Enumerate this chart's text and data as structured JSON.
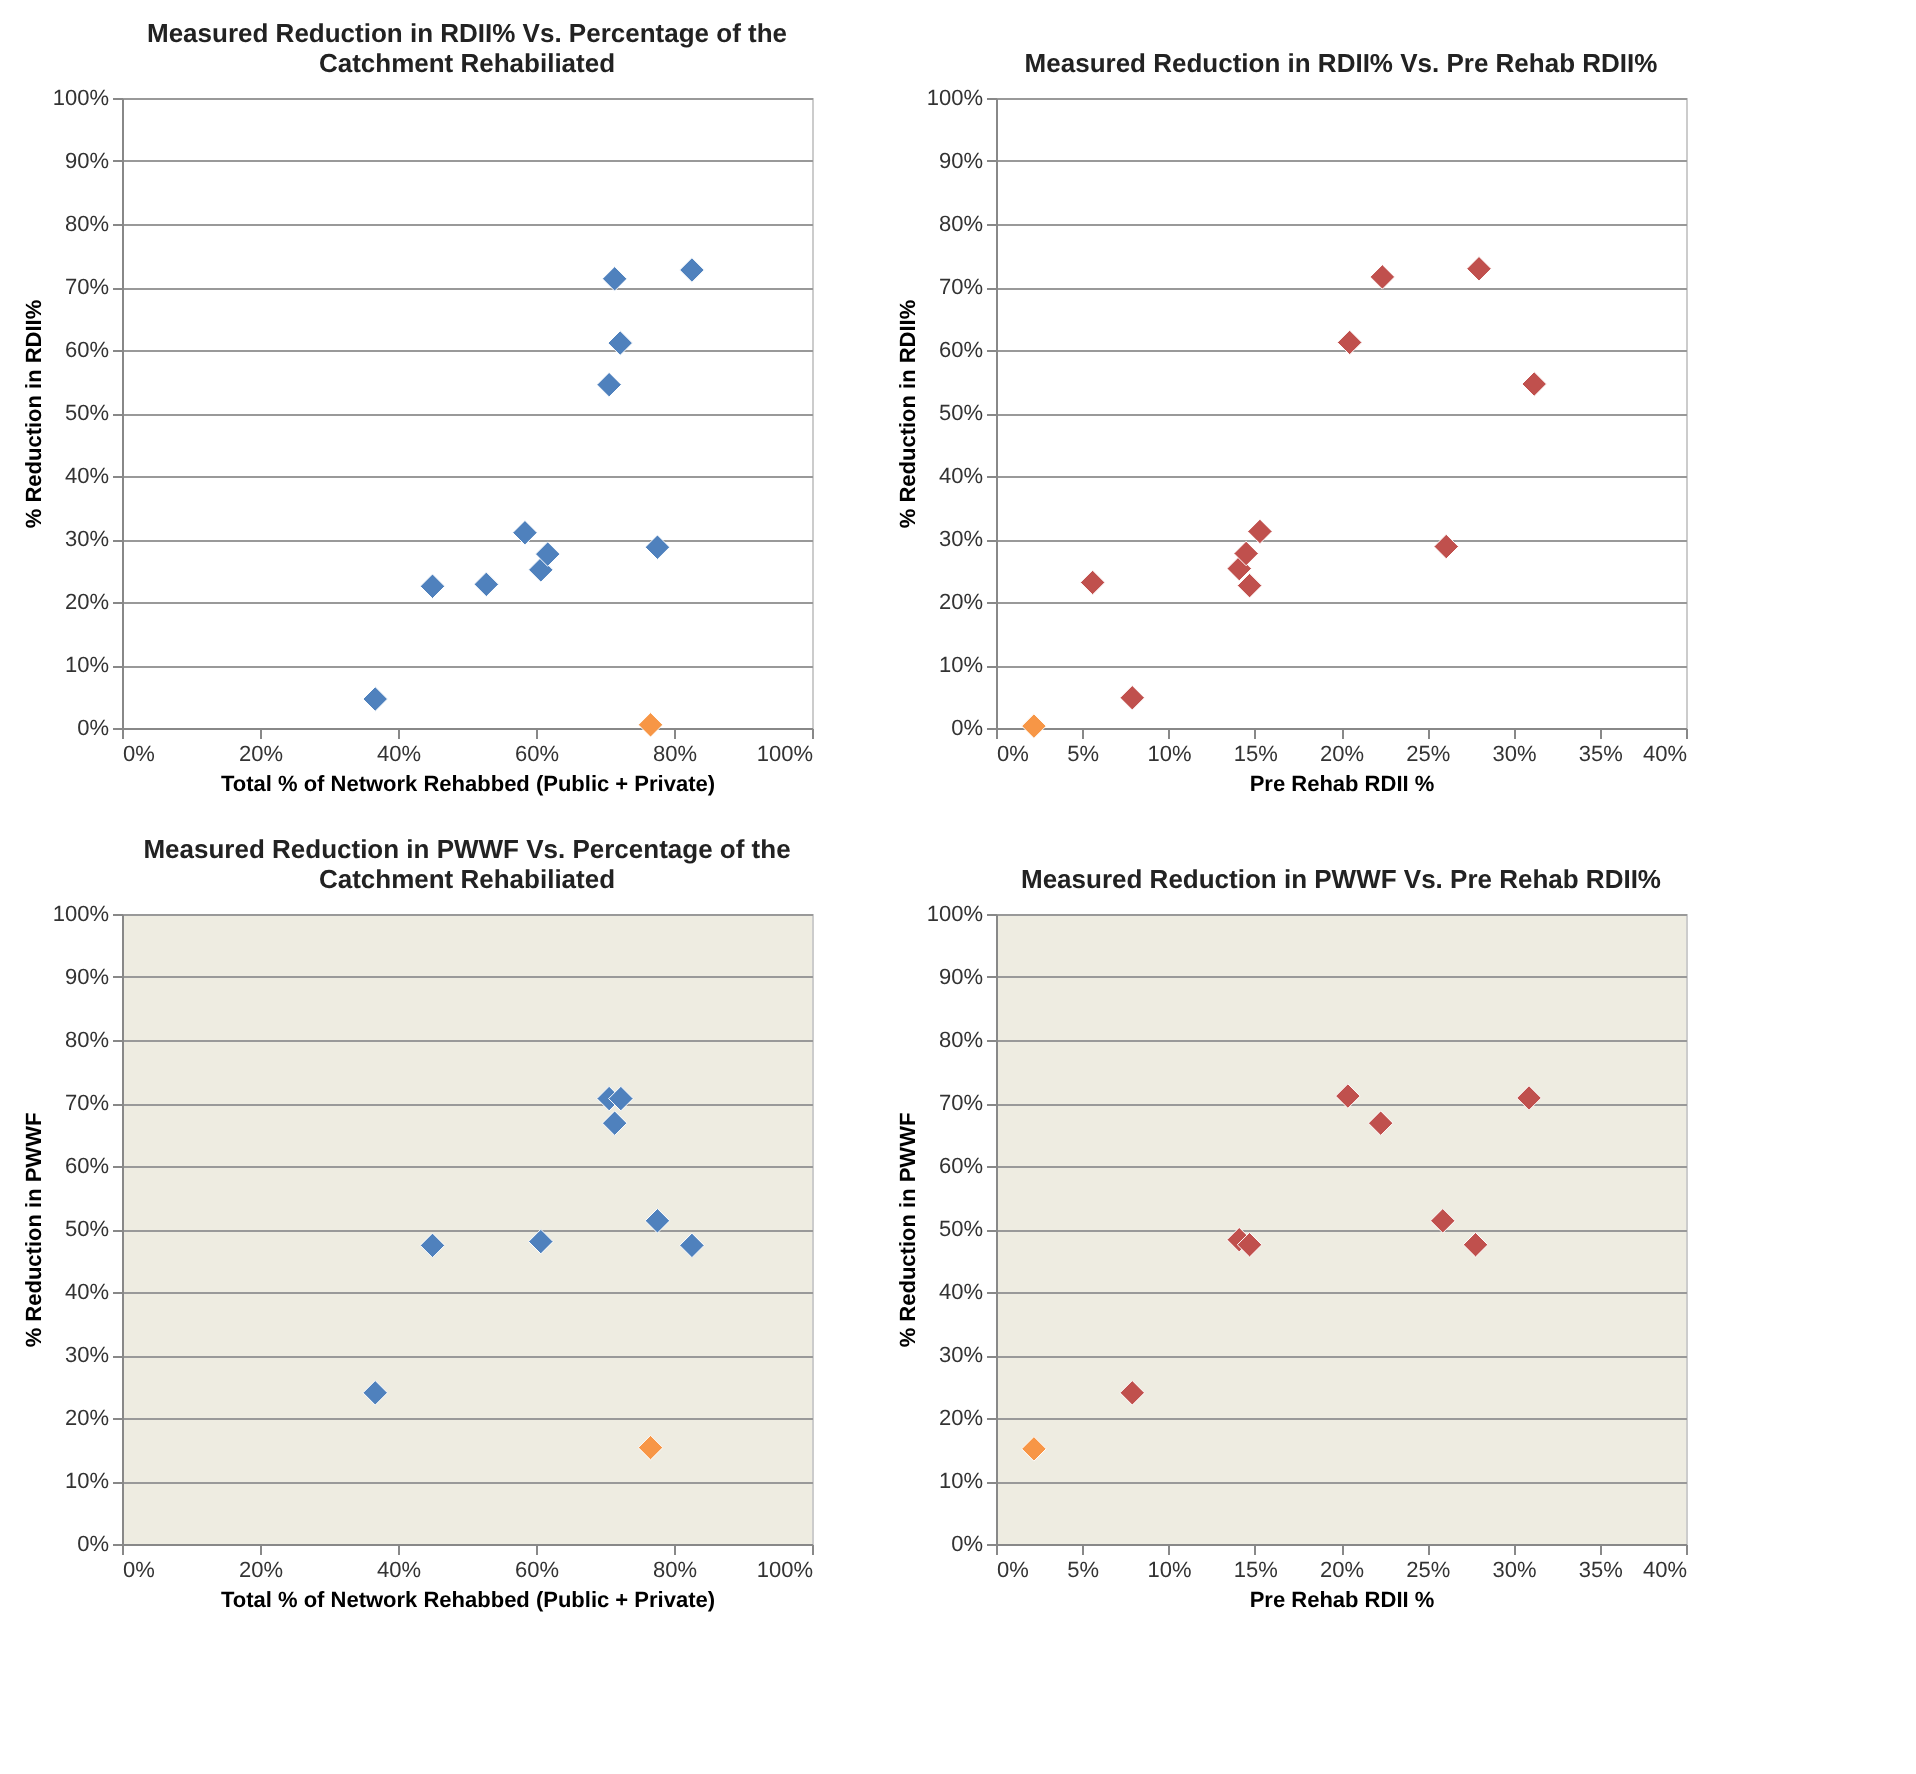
{
  "chart_data": [
    {
      "type": "scatter",
      "title": "Measured Reduction in RDII% Vs. Percentage of the Catchment Rehabiliated",
      "xlabel": "Total %  of Network Rehabbed (Public + Private)",
      "ylabel": "% Reduction in RDII%",
      "marker": "diamond",
      "grid": "y",
      "xlim": [
        0,
        100
      ],
      "ylim": [
        0,
        100
      ],
      "xticks": [
        {
          "value": 0,
          "label": "0%"
        },
        {
          "value": 20,
          "label": "20%"
        },
        {
          "value": 40,
          "label": "40%"
        },
        {
          "value": 60,
          "label": "60%"
        },
        {
          "value": 80,
          "label": "80%"
        },
        {
          "value": 100,
          "label": "100%"
        }
      ],
      "yticks": [
        {
          "value": 0,
          "label": "0%"
        },
        {
          "value": 10,
          "label": "10%"
        },
        {
          "value": 20,
          "label": "20%"
        },
        {
          "value": 30,
          "label": "30%"
        },
        {
          "value": 40,
          "label": "40%"
        },
        {
          "value": 50,
          "label": "50%"
        },
        {
          "value": 60,
          "label": "60%"
        },
        {
          "value": 70,
          "label": "70%"
        },
        {
          "value": 80,
          "label": "80%"
        },
        {
          "value": 90,
          "label": "90%"
        },
        {
          "value": 100,
          "label": "100%"
        }
      ],
      "series": [
        {
          "color": "#4f81bd",
          "x": [
            36.7,
            45.0,
            52.8,
            58.4,
            60.7,
            61.7,
            70.6,
            71.4,
            72.2,
            77.6,
            82.6
          ],
          "values": [
            4.6,
            22.5,
            22.8,
            31.0,
            25.1,
            27.6,
            54.5,
            71.3,
            61.1,
            28.7,
            72.7
          ]
        },
        {
          "color": "#f79646",
          "x": [
            76.6
          ],
          "values": [
            0.5
          ]
        }
      ]
    },
    {
      "type": "scatter",
      "title": "Measured Reduction in RDII% Vs. Pre Rehab RDII%",
      "xlabel": "Pre Rehab RDII %",
      "ylabel": "% Reduction in RDII%",
      "marker": "diamond",
      "grid": "y",
      "xlim": [
        0,
        40
      ],
      "ylim": [
        0,
        100
      ],
      "xticks": [
        {
          "value": 0,
          "label": "0%"
        },
        {
          "value": 5,
          "label": "5%"
        },
        {
          "value": 10,
          "label": "10%"
        },
        {
          "value": 15,
          "label": "15%"
        },
        {
          "value": 20,
          "label": "20%"
        },
        {
          "value": 25,
          "label": "25%"
        },
        {
          "value": 30,
          "label": "30%"
        },
        {
          "value": 35,
          "label": "35%"
        },
        {
          "value": 40,
          "label": "40%"
        }
      ],
      "yticks": [
        {
          "value": 0,
          "label": "0%"
        },
        {
          "value": 10,
          "label": "10%"
        },
        {
          "value": 20,
          "label": "20%"
        },
        {
          "value": 30,
          "label": "30%"
        },
        {
          "value": 40,
          "label": "40%"
        },
        {
          "value": 50,
          "label": "50%"
        },
        {
          "value": 60,
          "label": "60%"
        },
        {
          "value": 70,
          "label": "70%"
        },
        {
          "value": 80,
          "label": "80%"
        },
        {
          "value": 90,
          "label": "90%"
        },
        {
          "value": 100,
          "label": "100%"
        }
      ],
      "series": [
        {
          "color": "#c0504d",
          "x": [
            5.6,
            7.9,
            14.1,
            14.5,
            14.7,
            15.3,
            20.5,
            22.4,
            26.1,
            28.0,
            31.2
          ],
          "values": [
            23.1,
            4.8,
            25.3,
            27.7,
            22.6,
            31.2,
            61.2,
            71.6,
            28.8,
            72.9,
            54.6
          ]
        },
        {
          "color": "#f79646",
          "x": [
            2.2
          ],
          "values": [
            0.3
          ]
        }
      ]
    },
    {
      "type": "scatter",
      "title": "Measured Reduction in PWWF Vs. Percentage of the Catchment Rehabiliated",
      "xlabel": "Total %  of Network Rehabbed (Public + Private)",
      "ylabel": "% Reduction in PWWF",
      "marker": "diamond",
      "grid": "y",
      "xlim": [
        0,
        100
      ],
      "ylim": [
        0,
        100
      ],
      "xticks": [
        {
          "value": 0,
          "label": "0%"
        },
        {
          "value": 20,
          "label": "20%"
        },
        {
          "value": 40,
          "label": "40%"
        },
        {
          "value": 60,
          "label": "60%"
        },
        {
          "value": 80,
          "label": "80%"
        },
        {
          "value": 100,
          "label": "100%"
        }
      ],
      "yticks": [
        {
          "value": 0,
          "label": "0%"
        },
        {
          "value": 10,
          "label": "10%"
        },
        {
          "value": 20,
          "label": "20%"
        },
        {
          "value": 30,
          "label": "30%"
        },
        {
          "value": 40,
          "label": "40%"
        },
        {
          "value": 50,
          "label": "50%"
        },
        {
          "value": 60,
          "label": "60%"
        },
        {
          "value": 70,
          "label": "70%"
        },
        {
          "value": 80,
          "label": "80%"
        },
        {
          "value": 90,
          "label": "90%"
        },
        {
          "value": 100,
          "label": "100%"
        }
      ],
      "series": [
        {
          "color": "#4f81bd",
          "x": [
            36.7,
            45.0,
            60.7,
            70.6,
            72.3,
            71.4,
            77.6,
            82.6
          ],
          "values": [
            24.0,
            47.4,
            48.0,
            70.7,
            70.7,
            66.8,
            51.3,
            47.4
          ]
        },
        {
          "color": "#f79646",
          "x": [
            76.6
          ],
          "values": [
            15.3
          ]
        }
      ]
    },
    {
      "type": "scatter",
      "title": "Measured Reduction in PWWF Vs. Pre Rehab RDII%",
      "xlabel": "Pre Rehab RDII %",
      "ylabel": "% Reduction in PWWF",
      "marker": "diamond",
      "grid": "y",
      "xlim": [
        0,
        40
      ],
      "ylim": [
        0,
        100
      ],
      "xticks": [
        {
          "value": 0,
          "label": "0%"
        },
        {
          "value": 5,
          "label": "5%"
        },
        {
          "value": 10,
          "label": "10%"
        },
        {
          "value": 15,
          "label": "15%"
        },
        {
          "value": 20,
          "label": "20%"
        },
        {
          "value": 25,
          "label": "25%"
        },
        {
          "value": 30,
          "label": "30%"
        },
        {
          "value": 35,
          "label": "35%"
        },
        {
          "value": 40,
          "label": "40%"
        }
      ],
      "yticks": [
        {
          "value": 0,
          "label": "0%"
        },
        {
          "value": 10,
          "label": "10%"
        },
        {
          "value": 20,
          "label": "20%"
        },
        {
          "value": 30,
          "label": "30%"
        },
        {
          "value": 40,
          "label": "40%"
        },
        {
          "value": 50,
          "label": "50%"
        },
        {
          "value": 60,
          "label": "60%"
        },
        {
          "value": 70,
          "label": "70%"
        },
        {
          "value": 80,
          "label": "80%"
        },
        {
          "value": 90,
          "label": "90%"
        },
        {
          "value": 100,
          "label": "100%"
        }
      ],
      "series": [
        {
          "color": "#c0504d",
          "x": [
            7.9,
            14.1,
            14.7,
            20.4,
            22.3,
            25.9,
            27.8,
            30.9
          ],
          "values": [
            24.0,
            48.3,
            47.5,
            71.1,
            66.8,
            51.3,
            47.5,
            70.8
          ]
        },
        {
          "color": "#f79646",
          "x": [
            2.2
          ],
          "values": [
            15.1
          ]
        }
      ]
    }
  ]
}
